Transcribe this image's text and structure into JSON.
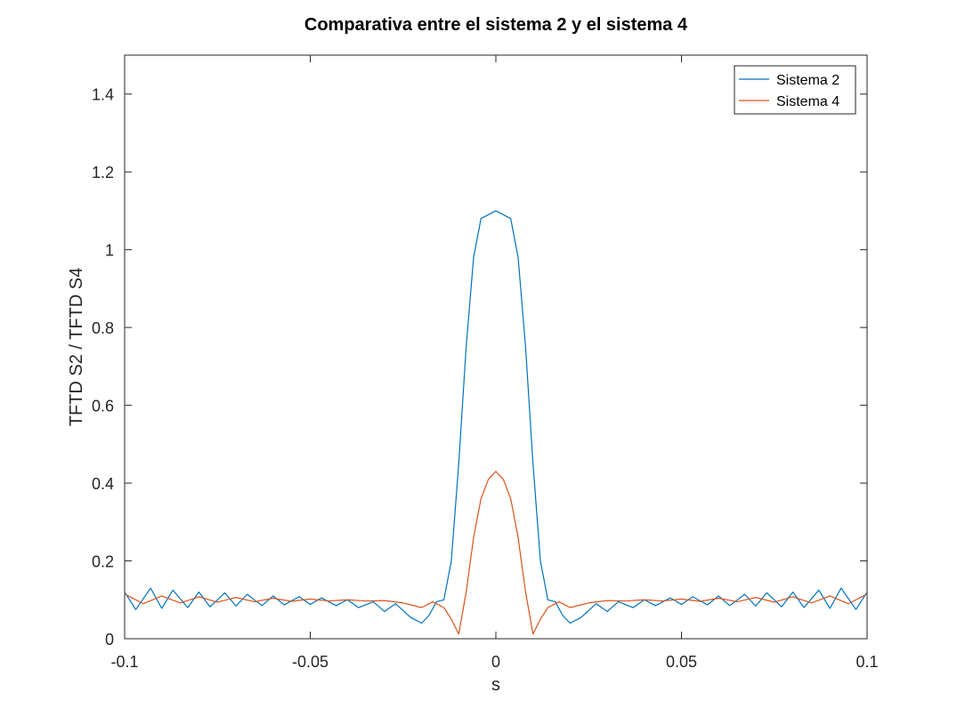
{
  "chart_data": {
    "type": "line",
    "title": "Comparativa entre el sistema 2 y el sistema 4",
    "xlabel": "s",
    "ylabel": "TFTD S2 / TFTD S4",
    "xlim": [
      -0.1,
      0.1
    ],
    "ylim": [
      0,
      1.5
    ],
    "xticks": [
      -0.1,
      -0.05,
      0,
      0.05,
      0.1
    ],
    "xtick_labels": [
      "-0.1",
      "-0.05",
      "0",
      "0.05",
      "0.1"
    ],
    "yticks": [
      0,
      0.2,
      0.4,
      0.6,
      0.8,
      1,
      1.2,
      1.4
    ],
    "ytick_labels": [
      "0",
      "0.2",
      "0.4",
      "0.6",
      "0.8",
      "1",
      "1.2",
      "1.4"
    ],
    "grid": false,
    "legend_position": "top-right",
    "series": [
      {
        "name": "Sistema 2",
        "color": "#0072BD",
        "x": [
          -0.1,
          -0.097,
          -0.093,
          -0.09,
          -0.087,
          -0.083,
          -0.08,
          -0.077,
          -0.073,
          -0.07,
          -0.067,
          -0.063,
          -0.06,
          -0.057,
          -0.053,
          -0.05,
          -0.047,
          -0.043,
          -0.04,
          -0.037,
          -0.033,
          -0.03,
          -0.027,
          -0.023,
          -0.02,
          -0.018,
          -0.016,
          -0.014,
          -0.012,
          -0.01,
          -0.008,
          -0.006,
          -0.004,
          -0.002,
          0,
          0.002,
          0.004,
          0.006,
          0.008,
          0.01,
          0.012,
          0.014,
          0.016,
          0.018,
          0.02,
          0.023,
          0.027,
          0.03,
          0.033,
          0.037,
          0.04,
          0.043,
          0.047,
          0.05,
          0.053,
          0.057,
          0.06,
          0.063,
          0.067,
          0.07,
          0.073,
          0.077,
          0.08,
          0.083,
          0.087,
          0.09,
          0.093,
          0.097,
          0.1
        ],
        "values": [
          0.12,
          0.075,
          0.13,
          0.078,
          0.125,
          0.08,
          0.12,
          0.082,
          0.118,
          0.084,
          0.114,
          0.085,
          0.11,
          0.087,
          0.108,
          0.088,
          0.105,
          0.085,
          0.1,
          0.08,
          0.095,
          0.07,
          0.09,
          0.055,
          0.04,
          0.06,
          0.095,
          0.1,
          0.2,
          0.45,
          0.75,
          0.98,
          1.08,
          1.09,
          1.1,
          1.09,
          1.08,
          0.98,
          0.75,
          0.45,
          0.2,
          0.1,
          0.095,
          0.06,
          0.04,
          0.055,
          0.09,
          0.07,
          0.095,
          0.08,
          0.1,
          0.085,
          0.105,
          0.088,
          0.108,
          0.087,
          0.11,
          0.085,
          0.114,
          0.084,
          0.118,
          0.082,
          0.12,
          0.08,
          0.125,
          0.078,
          0.13,
          0.075,
          0.12
        ]
      },
      {
        "name": "Sistema 4",
        "color": "#D95319",
        "x": [
          -0.1,
          -0.095,
          -0.09,
          -0.085,
          -0.08,
          -0.075,
          -0.07,
          -0.065,
          -0.06,
          -0.055,
          -0.05,
          -0.045,
          -0.04,
          -0.035,
          -0.03,
          -0.025,
          -0.02,
          -0.017,
          -0.014,
          -0.012,
          -0.01,
          -0.008,
          -0.006,
          -0.004,
          -0.002,
          0,
          0.002,
          0.004,
          0.006,
          0.008,
          0.01,
          0.012,
          0.014,
          0.017,
          0.02,
          0.025,
          0.03,
          0.035,
          0.04,
          0.045,
          0.05,
          0.055,
          0.06,
          0.065,
          0.07,
          0.075,
          0.08,
          0.085,
          0.09,
          0.095,
          0.1
        ],
        "values": [
          0.115,
          0.09,
          0.11,
          0.092,
          0.108,
          0.094,
          0.106,
          0.095,
          0.104,
          0.096,
          0.102,
          0.097,
          0.1,
          0.097,
          0.098,
          0.092,
          0.08,
          0.095,
          0.08,
          0.05,
          0.012,
          0.12,
          0.26,
          0.36,
          0.41,
          0.43,
          0.41,
          0.36,
          0.26,
          0.12,
          0.012,
          0.05,
          0.08,
          0.095,
          0.08,
          0.092,
          0.098,
          0.097,
          0.1,
          0.097,
          0.102,
          0.096,
          0.104,
          0.095,
          0.106,
          0.094,
          0.108,
          0.092,
          0.11,
          0.09,
          0.115
        ]
      }
    ]
  }
}
